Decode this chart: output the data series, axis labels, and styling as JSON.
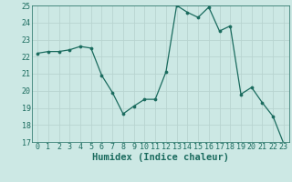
{
  "x": [
    0,
    1,
    2,
    3,
    4,
    5,
    6,
    7,
    8,
    9,
    10,
    11,
    12,
    13,
    14,
    15,
    16,
    17,
    18,
    19,
    20,
    21,
    22,
    23
  ],
  "y": [
    22.2,
    22.3,
    22.3,
    22.4,
    22.6,
    22.5,
    20.9,
    19.9,
    18.65,
    19.1,
    19.5,
    19.5,
    21.1,
    25.0,
    24.6,
    24.3,
    24.9,
    23.5,
    23.8,
    19.8,
    20.2,
    19.3,
    18.5,
    16.9
  ],
  "xlabel": "Humidex (Indice chaleur)",
  "ylim": [
    17,
    25
  ],
  "xlim": [
    -0.5,
    23.5
  ],
  "yticks": [
    17,
    18,
    19,
    20,
    21,
    22,
    23,
    24,
    25
  ],
  "xticks": [
    0,
    1,
    2,
    3,
    4,
    5,
    6,
    7,
    8,
    9,
    10,
    11,
    12,
    13,
    14,
    15,
    16,
    17,
    18,
    19,
    20,
    21,
    22,
    23
  ],
  "line_color": "#1a6b5e",
  "marker": "o",
  "marker_size": 2.2,
  "bg_color": "#cce8e4",
  "grid_color": "#b8d4d0",
  "tick_fontsize": 6.0,
  "xlabel_fontsize": 7.5
}
